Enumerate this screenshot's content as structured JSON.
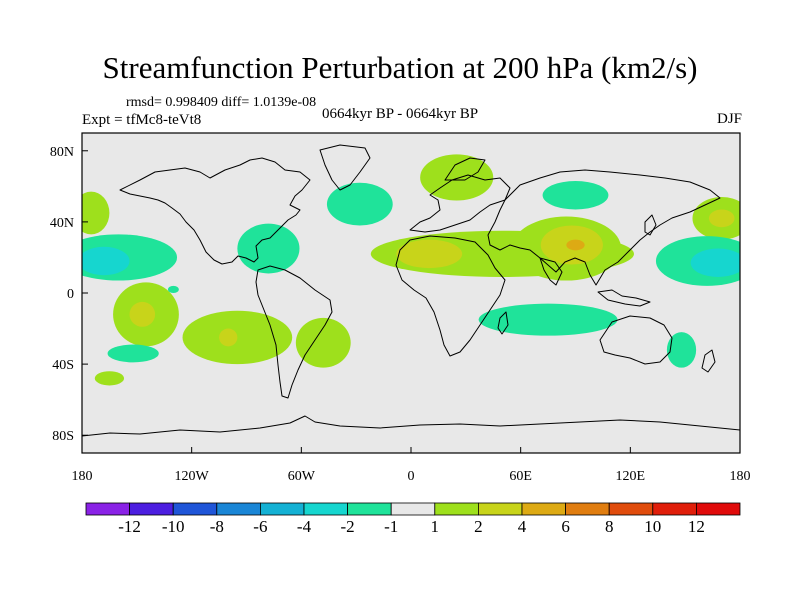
{
  "title": "Streamfunction Perturbation at 200 hPa (km2/s)",
  "stats_line": "rmsd= 0.998409 diff= 1.0139e-08",
  "experiment": "Expt = tfMc8-teVt8",
  "period": "0664kyr BP - 0664kyr BP",
  "season": "DJF",
  "map": {
    "lat_ticks": [
      "80N",
      "40N",
      "0",
      "40S",
      "80S"
    ],
    "lat_values": [
      80,
      40,
      0,
      -40,
      -80
    ],
    "lon_ticks": [
      "180",
      "120W",
      "60W",
      "0",
      "60E",
      "120E",
      "180"
    ],
    "lon_values": [
      -180,
      -120,
      -60,
      0,
      60,
      120,
      180
    ],
    "background_color": "#e8e8e8",
    "anomalies": [
      {
        "name": "nh-pacific-east-pos",
        "lon": -175,
        "lat": 45,
        "rlon": 10,
        "rlat": 12,
        "value": 2
      },
      {
        "name": "nh-pacific-west-pos",
        "lon": 170,
        "lat": 42,
        "rlon": 16,
        "rlat": 12,
        "value": 2
      },
      {
        "name": "nh-pacific-west-core",
        "lon": 170,
        "lat": 42,
        "rlon": 7,
        "rlat": 5,
        "value": 4
      },
      {
        "name": "north-pacific-neg",
        "lon": -160,
        "lat": 20,
        "rlon": 32,
        "rlat": 13,
        "value": -1
      },
      {
        "name": "north-pacific-neg-core",
        "lon": -168,
        "lat": 18,
        "rlon": 14,
        "rlat": 8,
        "value": -2
      },
      {
        "name": "west-pacific-neg",
        "lon": 162,
        "lat": 18,
        "rlon": 28,
        "rlat": 14,
        "value": -1
      },
      {
        "name": "west-pacific-neg-core",
        "lon": 168,
        "lat": 17,
        "rlon": 15,
        "rlat": 8,
        "value": -2
      },
      {
        "name": "caribbean-neg",
        "lon": -78,
        "lat": 25,
        "rlon": 17,
        "rlat": 14,
        "value": -1
      },
      {
        "name": "north-atlantic-neg",
        "lon": -28,
        "lat": 50,
        "rlon": 18,
        "rlat": 12,
        "value": -1
      },
      {
        "name": "scandinavia-pos",
        "lon": 25,
        "lat": 65,
        "rlon": 20,
        "rlat": 13,
        "value": 2
      },
      {
        "name": "siberia-neg",
        "lon": 90,
        "lat": 55,
        "rlon": 18,
        "rlat": 8,
        "value": -1
      },
      {
        "name": "subtropical-jet-pos",
        "lon": 50,
        "lat": 22,
        "rlon": 72,
        "rlat": 13,
        "value": 2
      },
      {
        "name": "africa-core",
        "lon": 10,
        "lat": 22,
        "rlon": 18,
        "rlat": 8,
        "value": 4
      },
      {
        "name": "tibet-pos",
        "lon": 85,
        "lat": 25,
        "rlon": 30,
        "rlat": 18,
        "value": 2
      },
      {
        "name": "tibet-core",
        "lon": 88,
        "lat": 27,
        "rlon": 17,
        "rlat": 11,
        "value": 4
      },
      {
        "name": "tibet-center",
        "lon": 90,
        "lat": 27,
        "rlon": 5,
        "rlat": 3,
        "value": 6
      },
      {
        "name": "south-pacific-pos",
        "lon": -145,
        "lat": -12,
        "rlon": 18,
        "rlat": 18,
        "value": 2
      },
      {
        "name": "south-pacific-core",
        "lon": -147,
        "lat": -12,
        "rlon": 7,
        "rlat": 7,
        "value": 4
      },
      {
        "name": "south-america-pos",
        "lon": -95,
        "lat": -25,
        "rlon": 30,
        "rlat": 15,
        "value": 2
      },
      {
        "name": "south-america-core",
        "lon": -100,
        "lat": -25,
        "rlon": 5,
        "rlat": 5,
        "value": 4
      },
      {
        "name": "south-atlantic-pos",
        "lon": -48,
        "lat": -28,
        "rlon": 15,
        "rlat": 14,
        "value": 2
      },
      {
        "name": "south-pacific-neg-lobe",
        "lon": -152,
        "lat": -34,
        "rlon": 14,
        "rlat": 5,
        "value": -1
      },
      {
        "name": "indian-ocean-neg",
        "lon": 75,
        "lat": -15,
        "rlon": 38,
        "rlat": 9,
        "value": -1
      },
      {
        "name": "australia-neg",
        "lon": 148,
        "lat": -32,
        "rlon": 8,
        "rlat": 10,
        "value": -1
      },
      {
        "name": "south-indian-pos",
        "lon": -165,
        "lat": -48,
        "rlon": 8,
        "rlat": 4,
        "value": 2
      },
      {
        "name": "atlantic-small-neg",
        "lon": -130,
        "lat": 2,
        "rlon": 3,
        "rlat": 2,
        "value": -1
      }
    ]
  },
  "colorbar": {
    "labels": [
      "-12",
      "-10",
      "-8",
      "-6",
      "-4",
      "-2",
      "-1",
      "1",
      "2",
      "4",
      "6",
      "8",
      "10",
      "12"
    ],
    "colors": [
      "#8a22e6",
      "#4c1ee0",
      "#1f55d8",
      "#1a86d6",
      "#14b1d4",
      "#16d6cf",
      "#1fe39a",
      "#e8e8e8",
      "#9ee01c",
      "#c8d41a",
      "#ddaa14",
      "#e07d10",
      "#e04c0c",
      "#e01e0a",
      "#e00a0a"
    ]
  }
}
